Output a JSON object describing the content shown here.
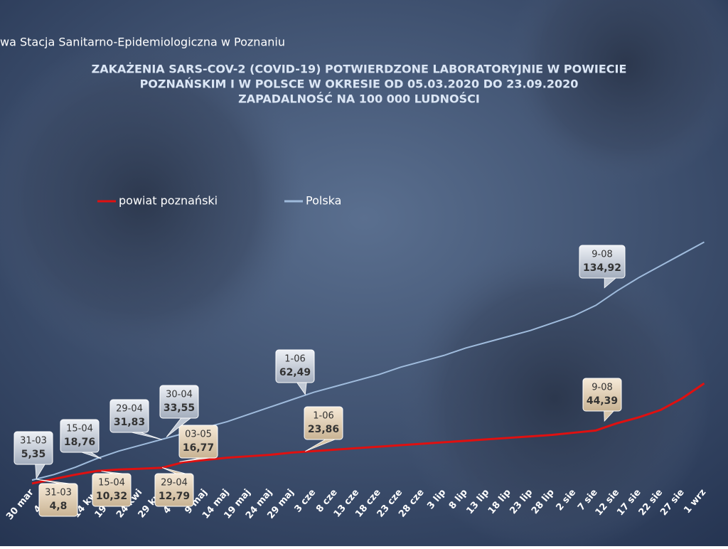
{
  "header": "wa Stacja Sanitarno-Epidemiologiczna w Poznaniu",
  "chart_data": {
    "type": "line",
    "title": [
      "ZAKAŻENIA SARS-COV-2 (COVID-19) POTWIERDZONE LABORATORYJNIE W POWIECIE",
      "POZNAŃSKIM I W POLSCE W OKRESIE OD 05.03.2020 DO 23.09.2020",
      "ZAPADALNOŚĆ NA 100 000 LUDNOŚCI"
    ],
    "categories": [
      "30 mar",
      "4 kwi",
      "9 kwi",
      "14 kwi",
      "19 kwi",
      "24 kwi",
      "29 kwi",
      "4 maj",
      "9 maj",
      "14 maj",
      "19 maj",
      "24 maj",
      "29 maj",
      "3 cze",
      "8 cze",
      "13 cze",
      "18 cze",
      "23 cze",
      "28 cze",
      "3 lip",
      "8 lip",
      "13 lip",
      "18 lip",
      "23 lip",
      "28 lip",
      "2 sie",
      "7 sie",
      "12 sie",
      "17 sie",
      "22 sie",
      "27 sie",
      "1 wrz"
    ],
    "ylim": [
      0,
      200
    ],
    "series": [
      {
        "name": "powiat poznański",
        "color": "#e01010",
        "values": [
          2,
          5,
          8,
          10.5,
          11.5,
          12,
          12.7,
          16.5,
          18,
          19.5,
          20.5,
          21.5,
          23,
          24,
          25,
          26,
          27,
          28,
          29,
          30,
          31,
          32,
          33,
          34,
          35,
          36.5,
          38,
          43,
          47,
          52,
          60,
          70
        ],
        "annotations": [
          {
            "date": "31-03",
            "value": 4.8,
            "value_label": "4,8"
          },
          {
            "date": "15-04",
            "value": 10.32,
            "value_label": "10,32"
          },
          {
            "date": "29-04",
            "value": 12.79,
            "value_label": "12,79"
          },
          {
            "date": "03-05",
            "value": 16.77,
            "value_label": "16,77"
          },
          {
            "date": "1-06",
            "value": 23.86,
            "value_label": "23,86"
          },
          {
            "date": "9-08",
            "value": 44.39,
            "value_label": "44,39"
          }
        ]
      },
      {
        "name": "Polska",
        "color": "#9fbbdc",
        "values": [
          4.3,
          8,
          13,
          19,
          24,
          28,
          32,
          36,
          40,
          44,
          49,
          54,
          59,
          64,
          68,
          72,
          76,
          81,
          85,
          89,
          94,
          98,
          102,
          106,
          111,
          116,
          123,
          133,
          142,
          150,
          158,
          166
        ],
        "annotations": [
          {
            "date": "31-03",
            "value": 5.35,
            "value_label": "5,35"
          },
          {
            "date": "15-04",
            "value": 18.76,
            "value_label": "18,76"
          },
          {
            "date": "29-04",
            "value": 31.83,
            "value_label": "31,83"
          },
          {
            "date": "30-04",
            "value": 33.55,
            "value_label": "33,55"
          },
          {
            "date": "1-06",
            "value": 62.49,
            "value_label": "62,49"
          },
          {
            "date": "9-08",
            "value": 134.92,
            "value_label": "134,92"
          }
        ]
      }
    ]
  }
}
